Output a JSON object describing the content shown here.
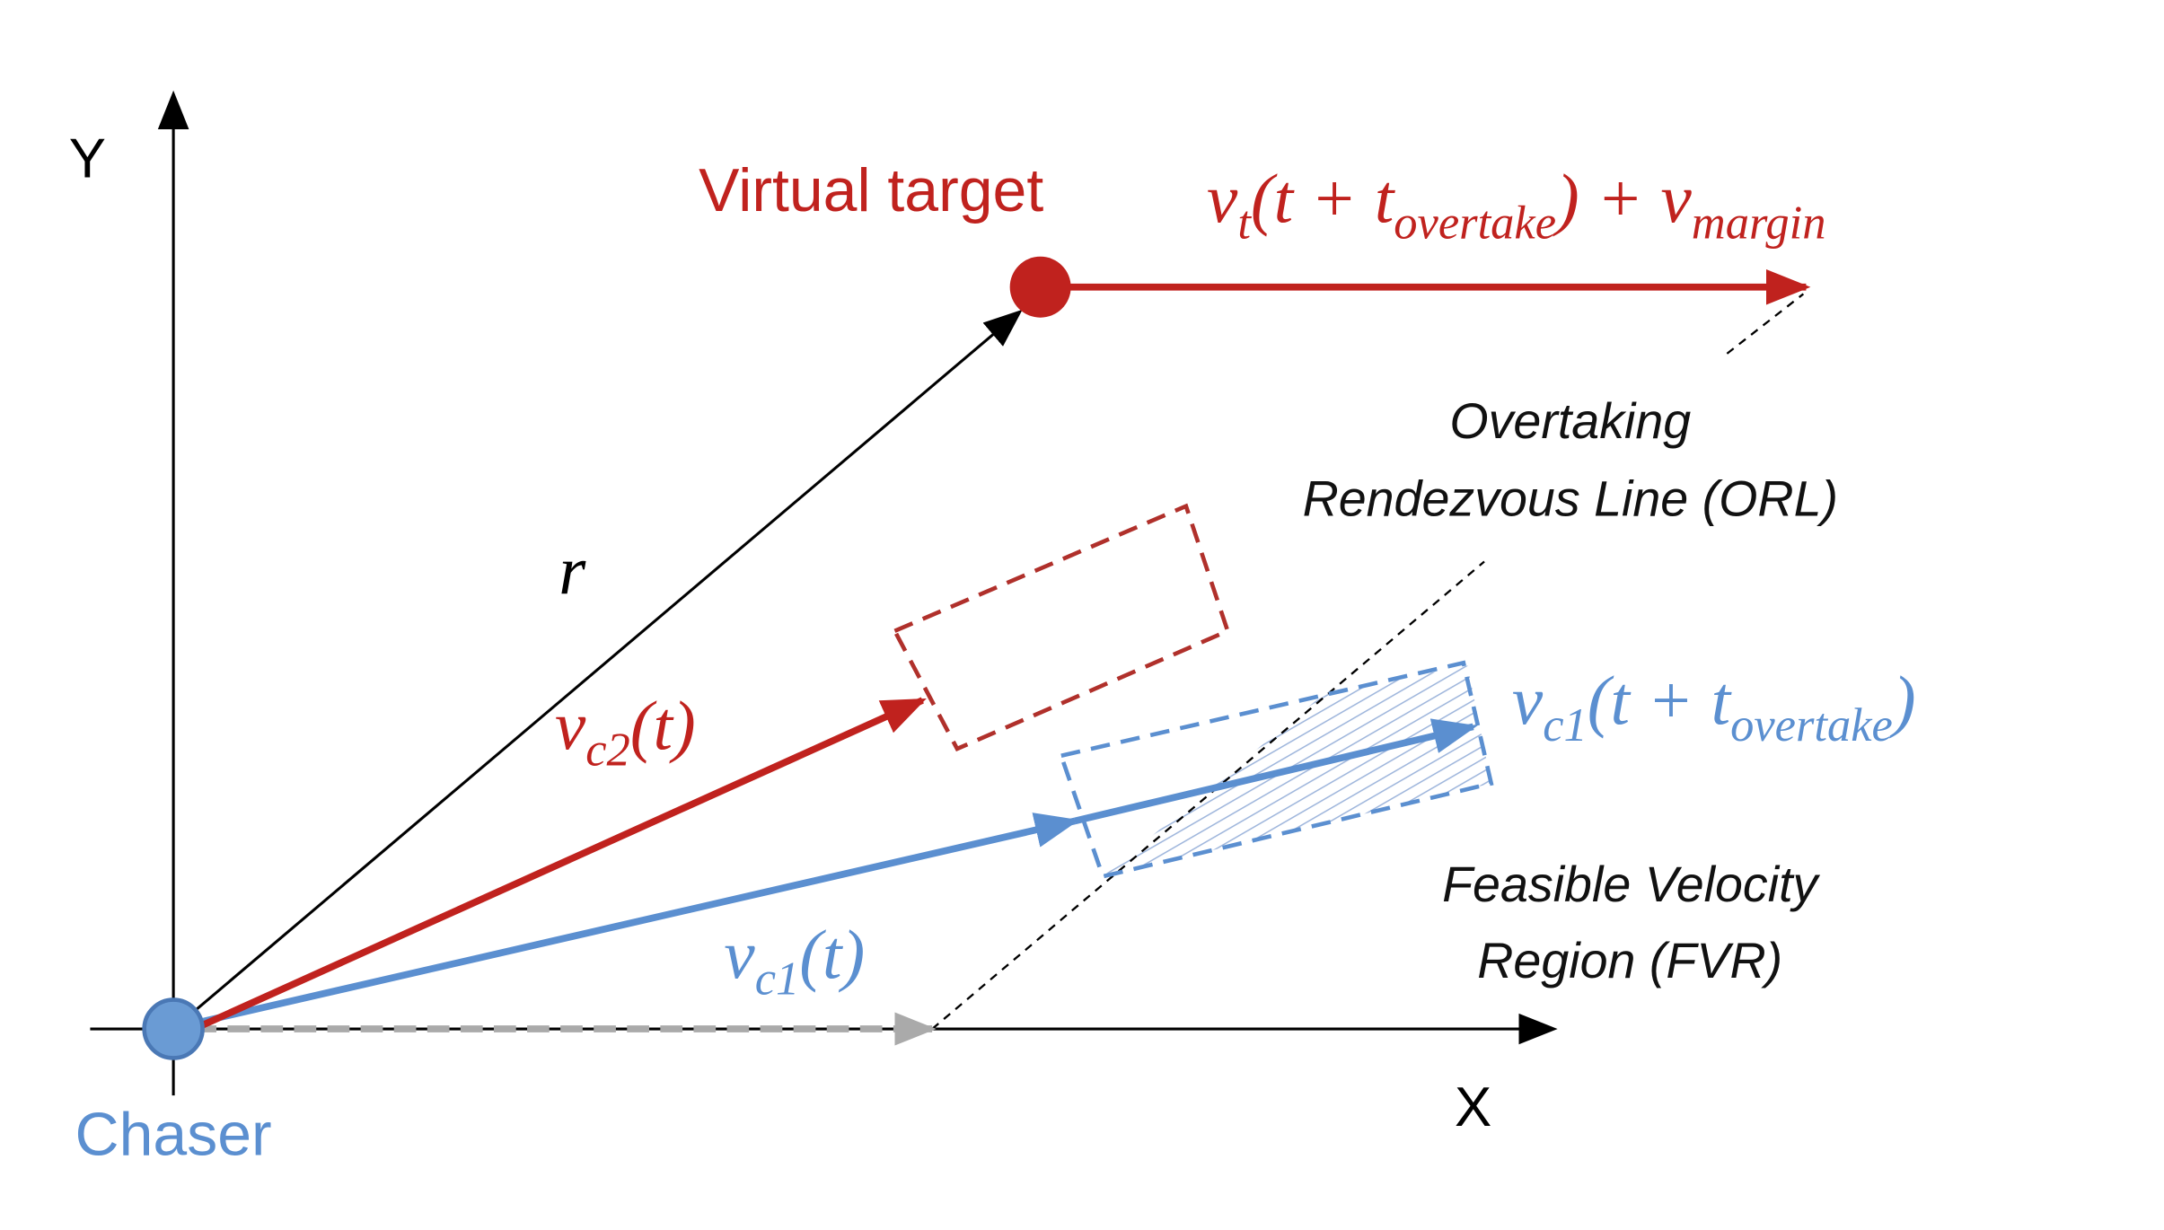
{
  "axes": {
    "y_label": "Y",
    "x_label": "X"
  },
  "labels": {
    "virtual_target": "Virtual target",
    "chaser": "Chaser",
    "orl_line1": "Overtaking",
    "orl_line2": "Rendezvous Line (ORL)",
    "fvr_line1": "Feasible Velocity",
    "fvr_line2": "Region (FVR)",
    "r": "r⃗"
  },
  "math": {
    "target_velocity": [
      {
        "text": "v"
      },
      {
        "sub": "t"
      },
      {
        "text": "(t + t"
      },
      {
        "sub": "overtake"
      },
      {
        "text": ") + v"
      },
      {
        "sub": "margin"
      }
    ],
    "vc2": [
      {
        "text": "v"
      },
      {
        "sub": "c2"
      },
      {
        "text": "(t)"
      }
    ],
    "vc1": [
      {
        "text": "v"
      },
      {
        "sub": "c1"
      },
      {
        "text": "(t)"
      }
    ],
    "vc1_future": [
      {
        "text": "v"
      },
      {
        "sub": "c1"
      },
      {
        "text": "(t + t"
      },
      {
        "sub": "overtake"
      },
      {
        "text": ")"
      }
    ]
  }
}
